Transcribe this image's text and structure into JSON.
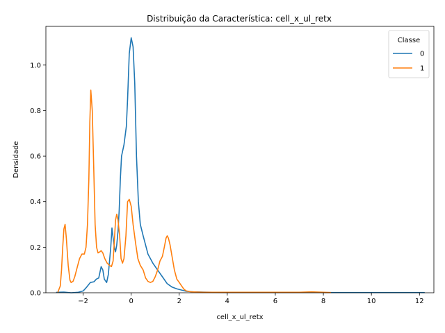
{
  "chart_data": {
    "type": "line",
    "title": "Distribuição da Característica: cell_x_ul_retx",
    "xlabel": "cell_x_ul_retx",
    "ylabel": "Densidade",
    "xlim": [
      -3.55,
      12.6
    ],
    "ylim": [
      0,
      1.17
    ],
    "xticks": [
      -2,
      0,
      2,
      4,
      6,
      8,
      10,
      12
    ],
    "xtick_labels": [
      "−2",
      "0",
      "2",
      "4",
      "6",
      "8",
      "10",
      "12"
    ],
    "yticks": [
      0.0,
      0.2,
      0.4,
      0.6,
      0.8,
      1.0
    ],
    "ytick_labels": [
      "0.0",
      "0.2",
      "0.4",
      "0.6",
      "0.8",
      "1.0"
    ],
    "grid": false,
    "legend": {
      "title": "Classe",
      "position": "top-right"
    },
    "series": [
      {
        "name": "0",
        "color": "#1f77b4",
        "points": [
          [
            -3.1,
            0.002
          ],
          [
            -2.8,
            0.003
          ],
          [
            -2.5,
            0.0
          ],
          [
            -2.2,
            0.002
          ],
          [
            -2.0,
            0.008
          ],
          [
            -1.85,
            0.025
          ],
          [
            -1.7,
            0.045
          ],
          [
            -1.55,
            0.048
          ],
          [
            -1.45,
            0.06
          ],
          [
            -1.35,
            0.065
          ],
          [
            -1.25,
            0.115
          ],
          [
            -1.18,
            0.1
          ],
          [
            -1.12,
            0.06
          ],
          [
            -1.02,
            0.045
          ],
          [
            -0.95,
            0.08
          ],
          [
            -0.85,
            0.2
          ],
          [
            -0.8,
            0.285
          ],
          [
            -0.75,
            0.24
          ],
          [
            -0.7,
            0.2
          ],
          [
            -0.65,
            0.18
          ],
          [
            -0.6,
            0.21
          ],
          [
            -0.55,
            0.27
          ],
          [
            -0.5,
            0.36
          ],
          [
            -0.45,
            0.5
          ],
          [
            -0.4,
            0.6
          ],
          [
            -0.3,
            0.65
          ],
          [
            -0.2,
            0.73
          ],
          [
            -0.15,
            0.85
          ],
          [
            -0.08,
            1.05
          ],
          [
            0.0,
            1.12
          ],
          [
            0.08,
            1.08
          ],
          [
            0.15,
            0.92
          ],
          [
            0.22,
            0.6
          ],
          [
            0.3,
            0.4
          ],
          [
            0.38,
            0.3
          ],
          [
            0.5,
            0.25
          ],
          [
            0.7,
            0.17
          ],
          [
            0.9,
            0.13
          ],
          [
            1.1,
            0.1
          ],
          [
            1.3,
            0.07
          ],
          [
            1.5,
            0.04
          ],
          [
            1.7,
            0.025
          ],
          [
            1.9,
            0.017
          ],
          [
            2.1,
            0.012
          ],
          [
            2.3,
            0.006
          ],
          [
            2.6,
            0.004
          ],
          [
            3.0,
            0.003
          ],
          [
            4.0,
            0.001
          ],
          [
            6.0,
            0.001
          ],
          [
            8.0,
            0.001
          ],
          [
            10.0,
            0.001
          ],
          [
            12.2,
            0.001
          ]
        ]
      },
      {
        "name": "1",
        "color": "#ff7f0e",
        "points": [
          [
            -3.05,
            0.003
          ],
          [
            -2.95,
            0.03
          ],
          [
            -2.9,
            0.1
          ],
          [
            -2.85,
            0.2
          ],
          [
            -2.8,
            0.28
          ],
          [
            -2.75,
            0.3
          ],
          [
            -2.7,
            0.24
          ],
          [
            -2.62,
            0.12
          ],
          [
            -2.55,
            0.055
          ],
          [
            -2.5,
            0.045
          ],
          [
            -2.42,
            0.05
          ],
          [
            -2.35,
            0.07
          ],
          [
            -2.25,
            0.11
          ],
          [
            -2.15,
            0.15
          ],
          [
            -2.05,
            0.17
          ],
          [
            -1.95,
            0.17
          ],
          [
            -1.88,
            0.2
          ],
          [
            -1.82,
            0.3
          ],
          [
            -1.76,
            0.5
          ],
          [
            -1.72,
            0.75
          ],
          [
            -1.68,
            0.89
          ],
          [
            -1.62,
            0.8
          ],
          [
            -1.56,
            0.55
          ],
          [
            -1.5,
            0.3
          ],
          [
            -1.44,
            0.2
          ],
          [
            -1.38,
            0.175
          ],
          [
            -1.3,
            0.18
          ],
          [
            -1.25,
            0.185
          ],
          [
            -1.18,
            0.175
          ],
          [
            -1.1,
            0.15
          ],
          [
            -1.0,
            0.13
          ],
          [
            -0.9,
            0.12
          ],
          [
            -0.82,
            0.115
          ],
          [
            -0.75,
            0.14
          ],
          [
            -0.7,
            0.23
          ],
          [
            -0.65,
            0.32
          ],
          [
            -0.6,
            0.345
          ],
          [
            -0.55,
            0.32
          ],
          [
            -0.48,
            0.25
          ],
          [
            -0.42,
            0.15
          ],
          [
            -0.36,
            0.13
          ],
          [
            -0.3,
            0.15
          ],
          [
            -0.22,
            0.25
          ],
          [
            -0.15,
            0.4
          ],
          [
            -0.08,
            0.41
          ],
          [
            0.0,
            0.38
          ],
          [
            0.08,
            0.3
          ],
          [
            0.18,
            0.22
          ],
          [
            0.28,
            0.15
          ],
          [
            0.38,
            0.12
          ],
          [
            0.5,
            0.1
          ],
          [
            0.6,
            0.065
          ],
          [
            0.7,
            0.05
          ],
          [
            0.8,
            0.045
          ],
          [
            0.9,
            0.05
          ],
          [
            1.0,
            0.07
          ],
          [
            1.1,
            0.1
          ],
          [
            1.2,
            0.14
          ],
          [
            1.3,
            0.16
          ],
          [
            1.38,
            0.2
          ],
          [
            1.45,
            0.24
          ],
          [
            1.5,
            0.25
          ],
          [
            1.55,
            0.24
          ],
          [
            1.62,
            0.21
          ],
          [
            1.7,
            0.16
          ],
          [
            1.8,
            0.1
          ],
          [
            1.9,
            0.06
          ],
          [
            2.0,
            0.045
          ],
          [
            2.1,
            0.03
          ],
          [
            2.2,
            0.015
          ],
          [
            2.3,
            0.008
          ],
          [
            2.5,
            0.004
          ],
          [
            3.0,
            0.002
          ],
          [
            5.0,
            0.002
          ],
          [
            7.0,
            0.002
          ],
          [
            7.5,
            0.004
          ],
          [
            8.0,
            0.002
          ],
          [
            8.3,
            0.001
          ]
        ]
      }
    ]
  }
}
